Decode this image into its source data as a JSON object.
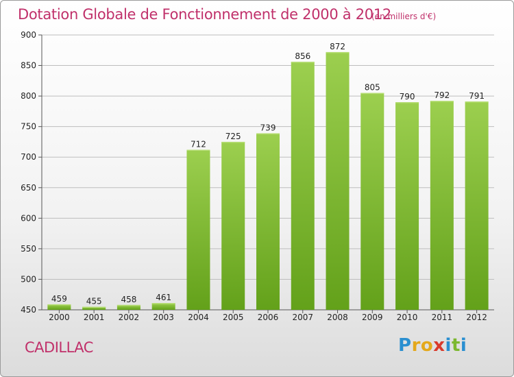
{
  "title": "Dotation Globale de Fonctionnement de 2000 à 2012",
  "unit": "(en milliers d'€)",
  "commune": "CADILLAC",
  "logo": [
    "P",
    "r",
    "o",
    "x",
    "i",
    "t",
    "i"
  ],
  "logo_colors": [
    "#2a8fd0",
    "#e4a81b",
    "#e4a81b",
    "#d93a2b",
    "#2a8fd0",
    "#7cb82f",
    "#2a8fd0"
  ],
  "colors": {
    "title": "#c0306a",
    "bar_top": "#9ccf4f",
    "bar_bottom": "#63a11a",
    "grid": "#bdbdbd"
  },
  "chart_data": {
    "type": "bar",
    "title": "Dotation Globale de Fonctionnement de 2000 à 2012",
    "xlabel": "",
    "ylabel": "",
    "categories": [
      "2000",
      "2001",
      "2002",
      "2003",
      "2004",
      "2005",
      "2006",
      "2007",
      "2008",
      "2009",
      "2010",
      "2011",
      "2012"
    ],
    "values": [
      459,
      455,
      458,
      461,
      712,
      725,
      739,
      856,
      872,
      805,
      790,
      792,
      791
    ],
    "ylim": [
      450,
      900
    ],
    "yticks": [
      450,
      500,
      550,
      600,
      650,
      700,
      750,
      800,
      850,
      900
    ],
    "grid": true
  }
}
